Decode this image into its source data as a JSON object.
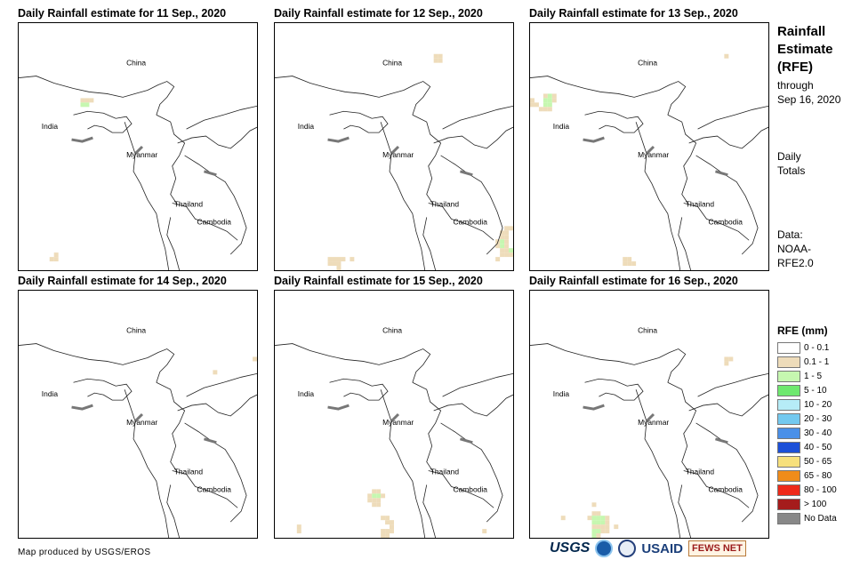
{
  "panels": [
    {
      "title": "Daily Rainfall estimate for 11 Sep., 2020",
      "pattern": 11
    },
    {
      "title": "Daily Rainfall estimate for 12 Sep., 2020",
      "pattern": 12
    },
    {
      "title": "Daily Rainfall estimate for 13 Sep., 2020",
      "pattern": 13
    },
    {
      "title": "Daily Rainfall estimate for 14 Sep., 2020",
      "pattern": 14
    },
    {
      "title": "Daily Rainfall estimate for 15 Sep., 2020",
      "pattern": 15
    },
    {
      "title": "Daily Rainfall estimate for 16 Sep., 2020",
      "pattern": 16
    }
  ],
  "map_labels": {
    "china": "China",
    "india": "India",
    "myanmar": "Myanmar",
    "thailand": "Thailand",
    "cambodia": "Cambodia"
  },
  "sidebar": {
    "title_line1": "Rainfall",
    "title_line2": "Estimate",
    "title_line3": "(RFE)",
    "through_line1": "through",
    "through_line2": "Sep 16, 2020",
    "daily_line1": "Daily",
    "daily_line2": "Totals",
    "data_line1": "Data:",
    "data_line2": "NOAA-",
    "data_line3": "RFE2.0"
  },
  "legend": {
    "title": "RFE (mm)",
    "items": [
      {
        "label": "0 - 0.1",
        "color": "#ffffff"
      },
      {
        "label": "0.1 - 1",
        "color": "#eedcba"
      },
      {
        "label": "1 - 5",
        "color": "#c6f7b0"
      },
      {
        "label": "5 - 10",
        "color": "#6ee86e"
      },
      {
        "label": "10 - 20",
        "color": "#b6ecf7"
      },
      {
        "label": "20 - 30",
        "color": "#74c9ef"
      },
      {
        "label": "30 - 40",
        "color": "#4a90e8"
      },
      {
        "label": "40 - 50",
        "color": "#1c50d8"
      },
      {
        "label": "50 - 65",
        "color": "#f7e07c"
      },
      {
        "label": "65 - 80",
        "color": "#f08c1a"
      },
      {
        "label": "80 - 100",
        "color": "#ee2a1a"
      },
      {
        "label": "> 100",
        "color": "#a51c1c"
      },
      {
        "label": "No Data",
        "color": "#888888"
      }
    ]
  },
  "credit": "Map produced by USGS/EROS",
  "logos": {
    "usgs": "USGS",
    "usaid": "USAID",
    "fews": "FEWS NET"
  }
}
